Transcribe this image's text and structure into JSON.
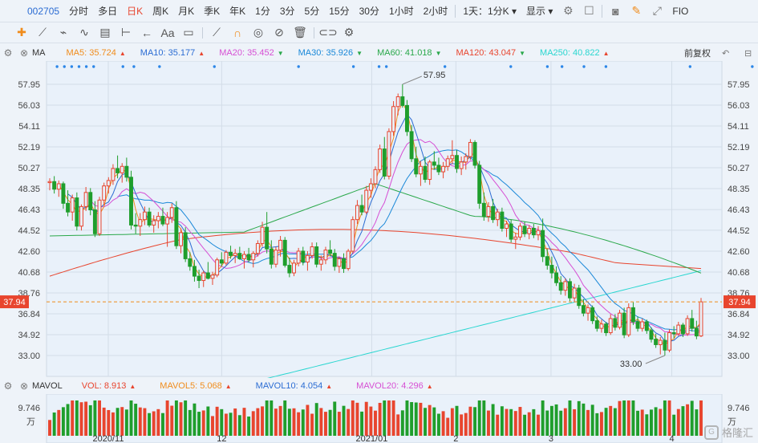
{
  "topbar": {
    "code": "002705",
    "periods": [
      "分时",
      "多日",
      "日K",
      "周K",
      "月K",
      "季K",
      "年K",
      "1分",
      "3分",
      "5分",
      "15分",
      "30分",
      "1小时",
      "2小时"
    ],
    "active_period": "日K",
    "dropdown1": "1天：1分K",
    "dropdown2": "显示",
    "fio": "FIO",
    "icons": [
      "settings-icon",
      "square-icon",
      "camera-icon",
      "pencil-icon",
      "expand-icon"
    ]
  },
  "toolbar": {
    "icons": [
      "crosshair-icon",
      "line-icon",
      "ray-icon",
      "wave-icon",
      "bars-icon",
      "range-icon",
      "arrow-icon",
      "text-icon",
      "rect-icon",
      "ruler-icon",
      "magnet-icon",
      "eye-icon",
      "hide-icon",
      "trash-icon",
      "link-icon",
      "gear-icon"
    ],
    "text_tool": "Aa"
  },
  "ma_legend": {
    "label": "MA",
    "items": [
      {
        "text": "MA5: 35.724",
        "color": "#f08c1c",
        "dir": "▲"
      },
      {
        "text": "MA10: 35.177",
        "color": "#2b6cd3",
        "dir": "▲"
      },
      {
        "text": "MA20: 35.452",
        "color": "#d64fd4",
        "dir": "▼"
      },
      {
        "text": "MA30: 35.926",
        "color": "#1a88d8",
        "dir": "▼"
      },
      {
        "text": "MA60: 41.018",
        "color": "#2aa84a",
        "dir": "▼"
      },
      {
        "text": "MA120: 43.047",
        "color": "#e8452e",
        "dir": "▼"
      },
      {
        "text": "MA250: 40.822",
        "color": "#29d6d0",
        "dir": "▲"
      }
    ],
    "adjust": "前复权"
  },
  "vol_legend": {
    "label": "MAVOL",
    "items": [
      {
        "text": "VOL: 8.913",
        "color": "#e8452e",
        "dir": "▲"
      },
      {
        "text": "MAVOL5: 5.068",
        "color": "#f08c1c",
        "dir": "▲"
      },
      {
        "text": "MAVOL10: 4.054",
        "color": "#2b6cd3",
        "dir": "▲"
      },
      {
        "text": "MAVOL20: 4.296",
        "color": "#d64fd4",
        "dir": "▲"
      }
    ]
  },
  "chart_data": {
    "type": "candlestick",
    "price_ticks": [
      "57.95",
      "56.03",
      "54.11",
      "52.19",
      "50.27",
      "48.35",
      "46.43",
      "44.52",
      "42.60",
      "40.68",
      "38.76",
      "36.84",
      "34.92",
      "33.00"
    ],
    "current_price": "37.94",
    "high_label": "57.95",
    "low_label": "33.00",
    "x_labels": [
      "2020/11",
      "12",
      "2021/01",
      "2",
      "3",
      "4"
    ],
    "volume_tick": "9.746",
    "volume_unit": "万",
    "ohlc": [
      [
        48.9,
        49.3,
        48.2,
        49.0
      ],
      [
        49.0,
        49.5,
        47.9,
        48.3
      ],
      [
        48.3,
        49.1,
        47.6,
        48.8
      ],
      [
        48.8,
        49.0,
        46.5,
        47.0
      ],
      [
        47.0,
        48.2,
        45.8,
        46.2
      ],
      [
        46.2,
        47.8,
        45.4,
        47.5
      ],
      [
        47.5,
        48.0,
        44.5,
        44.9
      ],
      [
        44.9,
        46.9,
        44.5,
        46.7
      ],
      [
        46.7,
        48.5,
        46.3,
        48.0
      ],
      [
        48.0,
        48.4,
        45.9,
        46.4
      ],
      [
        46.4,
        47.2,
        43.9,
        44.2
      ],
      [
        44.2,
        47.6,
        44.0,
        47.3
      ],
      [
        47.3,
        48.9,
        46.8,
        48.6
      ],
      [
        48.6,
        49.4,
        47.9,
        49.1
      ],
      [
        49.1,
        50.6,
        48.7,
        50.2
      ],
      [
        50.2,
        51.4,
        49.3,
        49.8
      ],
      [
        49.8,
        50.7,
        48.9,
        50.4
      ],
      [
        50.4,
        51.2,
        49.0,
        49.4
      ],
      [
        49.4,
        50.0,
        44.6,
        45.0
      ],
      [
        45.0,
        46.1,
        44.2,
        44.9
      ],
      [
        44.9,
        46.1,
        44.0,
        45.5
      ],
      [
        45.5,
        46.7,
        45.0,
        46.2
      ],
      [
        46.2,
        46.6,
        44.8,
        45.0
      ],
      [
        45.0,
        45.9,
        44.3,
        45.4
      ],
      [
        45.4,
        46.2,
        44.7,
        45.8
      ],
      [
        45.8,
        46.6,
        44.9,
        45.1
      ],
      [
        45.1,
        46.2,
        43.0,
        45.7
      ],
      [
        45.7,
        47.0,
        45.2,
        46.6
      ],
      [
        46.6,
        47.2,
        42.8,
        43.1
      ],
      [
        43.1,
        44.7,
        42.4,
        44.3
      ],
      [
        44.3,
        44.8,
        41.6,
        41.9
      ],
      [
        41.9,
        42.5,
        40.8,
        41.2
      ],
      [
        41.2,
        41.8,
        39.8,
        40.3
      ],
      [
        40.3,
        40.9,
        39.2,
        39.9
      ],
      [
        39.9,
        40.8,
        39.3,
        40.6
      ],
      [
        40.6,
        41.6,
        40.0,
        40.1
      ],
      [
        40.1,
        40.7,
        39.5,
        40.4
      ],
      [
        40.4,
        42.0,
        40.2,
        41.8
      ],
      [
        41.8,
        42.5,
        41.2,
        41.5
      ],
      [
        41.5,
        42.7,
        41.3,
        42.5
      ],
      [
        42.5,
        43.1,
        41.9,
        42.2
      ],
      [
        42.2,
        42.8,
        41.5,
        42.4
      ],
      [
        42.4,
        43.0,
        41.8,
        41.9
      ],
      [
        41.9,
        42.6,
        41.0,
        42.3
      ],
      [
        42.3,
        42.9,
        41.6,
        41.8
      ],
      [
        41.8,
        42.6,
        41.1,
        42.4
      ],
      [
        42.4,
        43.6,
        42.1,
        43.3
      ],
      [
        43.3,
        45.3,
        43.0,
        44.8
      ],
      [
        44.8,
        46.2,
        42.4,
        42.8
      ],
      [
        42.8,
        43.6,
        41.0,
        41.4
      ],
      [
        41.4,
        43.0,
        41.1,
        42.7
      ],
      [
        42.7,
        44.0,
        42.1,
        43.6
      ],
      [
        43.6,
        43.9,
        41.1,
        41.3
      ],
      [
        41.3,
        42.0,
        40.2,
        40.6
      ],
      [
        40.6,
        41.8,
        40.3,
        41.5
      ],
      [
        41.5,
        42.9,
        41.2,
        42.6
      ],
      [
        42.6,
        43.0,
        41.3,
        41.6
      ],
      [
        41.6,
        42.6,
        40.8,
        42.2
      ],
      [
        42.2,
        43.4,
        41.9,
        43.0
      ],
      [
        43.0,
        43.4,
        41.1,
        41.4
      ],
      [
        41.4,
        42.2,
        40.8,
        41.8
      ],
      [
        41.8,
        43.0,
        41.4,
        42.7
      ],
      [
        42.7,
        43.6,
        42.1,
        42.4
      ],
      [
        42.4,
        42.8,
        40.8,
        41.2
      ],
      [
        41.2,
        42.1,
        40.6,
        41.9
      ],
      [
        41.9,
        42.4,
        40.6,
        41.0
      ],
      [
        41.0,
        42.8,
        40.8,
        42.6
      ],
      [
        42.6,
        45.8,
        42.4,
        45.5
      ],
      [
        45.5,
        47.3,
        45.1,
        46.8
      ],
      [
        46.8,
        47.8,
        45.9,
        46.2
      ],
      [
        46.2,
        48.6,
        46.0,
        48.2
      ],
      [
        48.2,
        49.3,
        47.5,
        48.8
      ],
      [
        48.8,
        50.4,
        48.4,
        50.1
      ],
      [
        50.1,
        52.4,
        49.8,
        52.0
      ],
      [
        52.0,
        53.1,
        49.2,
        49.5
      ],
      [
        49.5,
        53.9,
        49.2,
        53.6
      ],
      [
        53.6,
        56.4,
        53.2,
        55.9
      ],
      [
        55.9,
        57.1,
        55.1,
        56.8
      ],
      [
        56.8,
        57.95,
        55.8,
        56.0
      ],
      [
        56.0,
        56.5,
        53.2,
        53.6
      ],
      [
        53.6,
        54.2,
        50.8,
        51.1
      ],
      [
        51.1,
        52.2,
        49.4,
        49.7
      ],
      [
        49.7,
        50.9,
        48.6,
        50.4
      ],
      [
        50.4,
        51.3,
        48.9,
        49.2
      ],
      [
        49.2,
        51.0,
        48.7,
        50.8
      ],
      [
        50.8,
        51.8,
        50.1,
        50.5
      ],
      [
        50.5,
        51.2,
        49.6,
        49.9
      ],
      [
        49.9,
        50.8,
        49.3,
        50.4
      ],
      [
        50.4,
        51.4,
        50.0,
        51.1
      ],
      [
        51.1,
        52.8,
        50.6,
        51.4
      ],
      [
        51.4,
        51.9,
        49.8,
        50.2
      ],
      [
        50.2,
        51.3,
        49.6,
        50.8
      ],
      [
        50.8,
        51.6,
        50.1,
        51.3
      ],
      [
        51.3,
        52.9,
        51.0,
        52.6
      ],
      [
        52.6,
        52.8,
        50.2,
        50.5
      ],
      [
        50.5,
        50.9,
        46.5,
        47.0
      ],
      [
        47.0,
        48.0,
        45.4,
        45.8
      ],
      [
        45.8,
        47.1,
        45.3,
        46.7
      ],
      [
        46.7,
        47.4,
        45.2,
        45.5
      ],
      [
        45.5,
        46.5,
        44.9,
        46.2
      ],
      [
        46.2,
        46.6,
        44.4,
        44.7
      ],
      [
        44.7,
        45.4,
        43.9,
        45.1
      ],
      [
        45.1,
        45.5,
        43.4,
        43.7
      ],
      [
        43.7,
        44.3,
        42.8,
        43.9
      ],
      [
        43.9,
        45.2,
        43.6,
        44.9
      ],
      [
        44.9,
        45.3,
        43.9,
        44.2
      ],
      [
        44.2,
        45.0,
        43.7,
        44.7
      ],
      [
        44.7,
        45.1,
        43.8,
        44.1
      ],
      [
        44.1,
        44.9,
        43.6,
        44.5
      ],
      [
        44.5,
        45.6,
        41.6,
        42.1
      ],
      [
        42.1,
        42.8,
        40.9,
        41.3
      ],
      [
        41.3,
        42.1,
        40.1,
        40.6
      ],
      [
        40.6,
        41.2,
        39.4,
        39.7
      ],
      [
        39.7,
        40.3,
        38.6,
        39.0
      ],
      [
        39.0,
        40.1,
        38.5,
        39.8
      ],
      [
        39.8,
        40.1,
        38.0,
        38.3
      ],
      [
        38.3,
        39.6,
        37.9,
        39.2
      ],
      [
        39.2,
        39.5,
        37.3,
        37.6
      ],
      [
        37.6,
        38.2,
        36.6,
        36.9
      ],
      [
        36.9,
        37.7,
        36.2,
        37.4
      ],
      [
        37.4,
        37.6,
        35.9,
        36.2
      ],
      [
        36.2,
        36.6,
        35.2,
        35.5
      ],
      [
        35.5,
        36.3,
        35.1,
        35.9
      ],
      [
        35.9,
        36.1,
        34.8,
        35.1
      ],
      [
        35.1,
        36.8,
        34.9,
        36.4
      ],
      [
        36.4,
        36.8,
        35.3,
        35.6
      ],
      [
        35.6,
        37.2,
        35.4,
        36.9
      ],
      [
        36.9,
        37.4,
        34.6,
        34.9
      ],
      [
        34.9,
        37.8,
        34.7,
        37.4
      ],
      [
        37.4,
        37.9,
        35.8,
        36.1
      ],
      [
        36.1,
        36.6,
        35.2,
        35.5
      ],
      [
        35.5,
        36.4,
        35.2,
        36.1
      ],
      [
        36.1,
        36.3,
        35.0,
        35.3
      ],
      [
        35.3,
        35.6,
        34.2,
        34.5
      ],
      [
        34.5,
        35.0,
        33.7,
        34.0
      ],
      [
        34.0,
        34.7,
        33.1,
        34.4
      ],
      [
        34.4,
        35.1,
        33.0,
        33.5
      ],
      [
        33.5,
        35.4,
        33.3,
        35.1
      ],
      [
        35.1,
        35.7,
        34.6,
        35.0
      ],
      [
        35.0,
        36.1,
        34.8,
        35.8
      ],
      [
        35.8,
        36.0,
        34.7,
        35.0
      ],
      [
        35.0,
        36.7,
        34.8,
        36.4
      ],
      [
        36.4,
        37.2,
        35.2,
        35.5
      ],
      [
        35.5,
        36.2,
        34.5,
        34.8
      ],
      [
        34.8,
        38.3,
        34.7,
        37.94
      ]
    ]
  }
}
